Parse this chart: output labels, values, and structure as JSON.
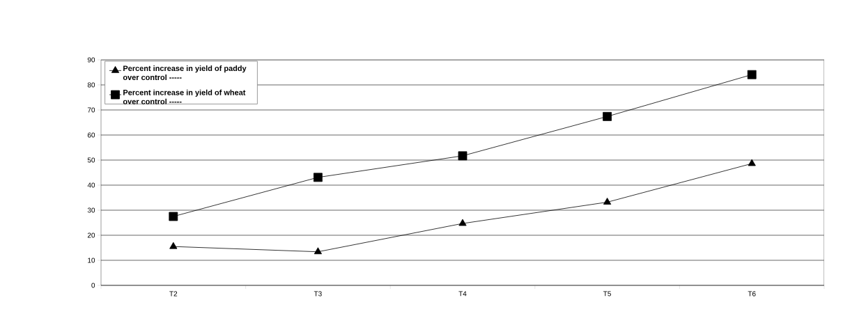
{
  "chart_data": {
    "type": "line",
    "categories": [
      "T2",
      "T3",
      "T4",
      "T5",
      "T6"
    ],
    "series": [
      {
        "name": "Percent increase in yield of paddy over control -----",
        "color": "#000000",
        "marker": "triangle",
        "values": [
          15.5,
          13.4,
          24.7,
          33.2,
          48.6
        ]
      },
      {
        "name": "Percent increase in yield of wheat over control -----",
        "color": "#000000",
        "marker": "square",
        "values": [
          27.5,
          43.1,
          51.7,
          67.4,
          84.1
        ]
      }
    ],
    "ylim": [
      0,
      90
    ],
    "yticks": [
      0,
      10,
      20,
      30,
      40,
      50,
      60,
      70,
      80,
      90
    ],
    "grid": "y",
    "legend": "top left",
    "line_style": "solid"
  }
}
